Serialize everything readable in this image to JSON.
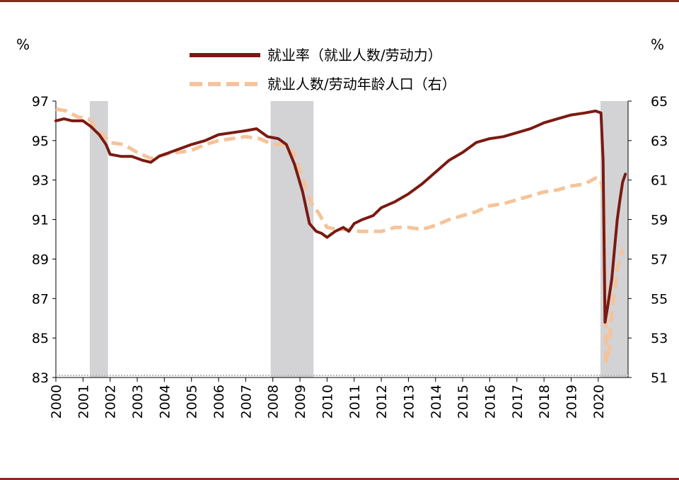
{
  "chart_data": {
    "type": "line",
    "title": "",
    "xlabel": "",
    "ylabel_left_unit": "%",
    "ylabel_right_unit": "%",
    "x_ticks": [
      "2000",
      "2001",
      "2002",
      "2003",
      "2004",
      "2005",
      "2006",
      "2007",
      "2008",
      "2009",
      "2010",
      "2011",
      "2012",
      "2013",
      "2014",
      "2015",
      "2016",
      "2017",
      "2018",
      "2019",
      "2020"
    ],
    "y_left_ticks": [
      "83",
      "85",
      "87",
      "89",
      "91",
      "93",
      "95",
      "97"
    ],
    "y_right_ticks": [
      "51",
      "53",
      "55",
      "57",
      "59",
      "61",
      "63",
      "65"
    ],
    "ylim_left": [
      83,
      97
    ],
    "ylim_right": [
      51,
      65
    ],
    "xlim": [
      2000,
      2021.1
    ],
    "legend_position": "top-center",
    "recession_shading": [
      [
        2001.25,
        2001.92
      ],
      [
        2007.92,
        2009.5
      ],
      [
        2020.08,
        2021.1
      ]
    ],
    "colors": {
      "series1": "#7a1a12",
      "series2": "#f5c39a",
      "shade": "#d3d3d6",
      "frame": "#8b2a20"
    },
    "series": [
      {
        "name": "就业率（就业人数/劳动力）",
        "axis": "left",
        "style": "solid",
        "x": [
          2000,
          2000.3,
          2000.6,
          2001.0,
          2001.3,
          2001.6,
          2001.85,
          2002.0,
          2002.4,
          2002.8,
          2003.2,
          2003.5,
          2003.8,
          2004.2,
          2004.6,
          2005.0,
          2005.5,
          2006.0,
          2006.5,
          2007.0,
          2007.4,
          2007.8,
          2008.2,
          2008.5,
          2008.8,
          2009.1,
          2009.35,
          2009.6,
          2009.8,
          2010.0,
          2010.3,
          2010.6,
          2010.8,
          2011.0,
          2011.3,
          2011.7,
          2012.0,
          2012.5,
          2013.0,
          2013.5,
          2014.0,
          2014.5,
          2015.0,
          2015.5,
          2016.0,
          2016.5,
          2017.0,
          2017.5,
          2018.0,
          2018.5,
          2019.0,
          2019.5,
          2019.9,
          2020.1,
          2020.18,
          2020.25,
          2020.35,
          2020.5,
          2020.6,
          2020.7,
          2020.8,
          2020.9,
          2021.0
        ],
        "values": [
          96.0,
          96.1,
          96.0,
          96.0,
          95.7,
          95.3,
          94.8,
          94.3,
          94.2,
          94.2,
          94.0,
          93.9,
          94.2,
          94.4,
          94.6,
          94.8,
          95.0,
          95.3,
          95.4,
          95.5,
          95.6,
          95.2,
          95.1,
          94.8,
          93.8,
          92.4,
          90.8,
          90.4,
          90.3,
          90.1,
          90.4,
          90.6,
          90.4,
          90.8,
          91.0,
          91.2,
          91.6,
          91.9,
          92.3,
          92.8,
          93.4,
          94.0,
          94.4,
          94.9,
          95.1,
          95.2,
          95.4,
          95.6,
          95.9,
          96.1,
          96.3,
          96.4,
          96.5,
          96.4,
          94.0,
          85.8,
          86.6,
          88.0,
          89.5,
          91.0,
          92.0,
          92.9,
          93.3
        ]
      },
      {
        "name": "就业人数/劳动年龄人口（右）",
        "axis": "right",
        "style": "dashed",
        "x": [
          2000,
          2000.4,
          2000.8,
          2001.2,
          2001.6,
          2002.0,
          2002.5,
          2003.0,
          2003.5,
          2004.0,
          2004.5,
          2005.0,
          2005.5,
          2006.0,
          2006.5,
          2007.0,
          2007.5,
          2008.0,
          2008.4,
          2008.8,
          2009.1,
          2009.4,
          2009.7,
          2010.0,
          2010.4,
          2010.8,
          2011.2,
          2011.7,
          2012.0,
          2012.5,
          2013.0,
          2013.5,
          2014.0,
          2014.5,
          2015.0,
          2015.5,
          2016.0,
          2016.5,
          2017.0,
          2017.5,
          2018.0,
          2018.5,
          2019.0,
          2019.5,
          2019.9,
          2020.1,
          2020.2,
          2020.3,
          2020.4,
          2020.5,
          2020.6,
          2020.7,
          2020.8,
          2020.9
        ],
        "values": [
          64.6,
          64.5,
          64.2,
          64.1,
          63.5,
          62.9,
          62.8,
          62.4,
          62.1,
          62.3,
          62.4,
          62.5,
          62.8,
          63.0,
          63.1,
          63.2,
          63.1,
          62.8,
          62.8,
          62.3,
          61.1,
          59.9,
          59.3,
          58.6,
          58.5,
          58.5,
          58.4,
          58.4,
          58.4,
          58.6,
          58.6,
          58.5,
          58.7,
          59.0,
          59.2,
          59.4,
          59.7,
          59.8,
          60.0,
          60.2,
          60.4,
          60.5,
          60.7,
          60.8,
          61.1,
          61.0,
          60.1,
          51.8,
          52.4,
          54.5,
          55.3,
          56.5,
          57.0,
          57.5
        ]
      }
    ]
  }
}
